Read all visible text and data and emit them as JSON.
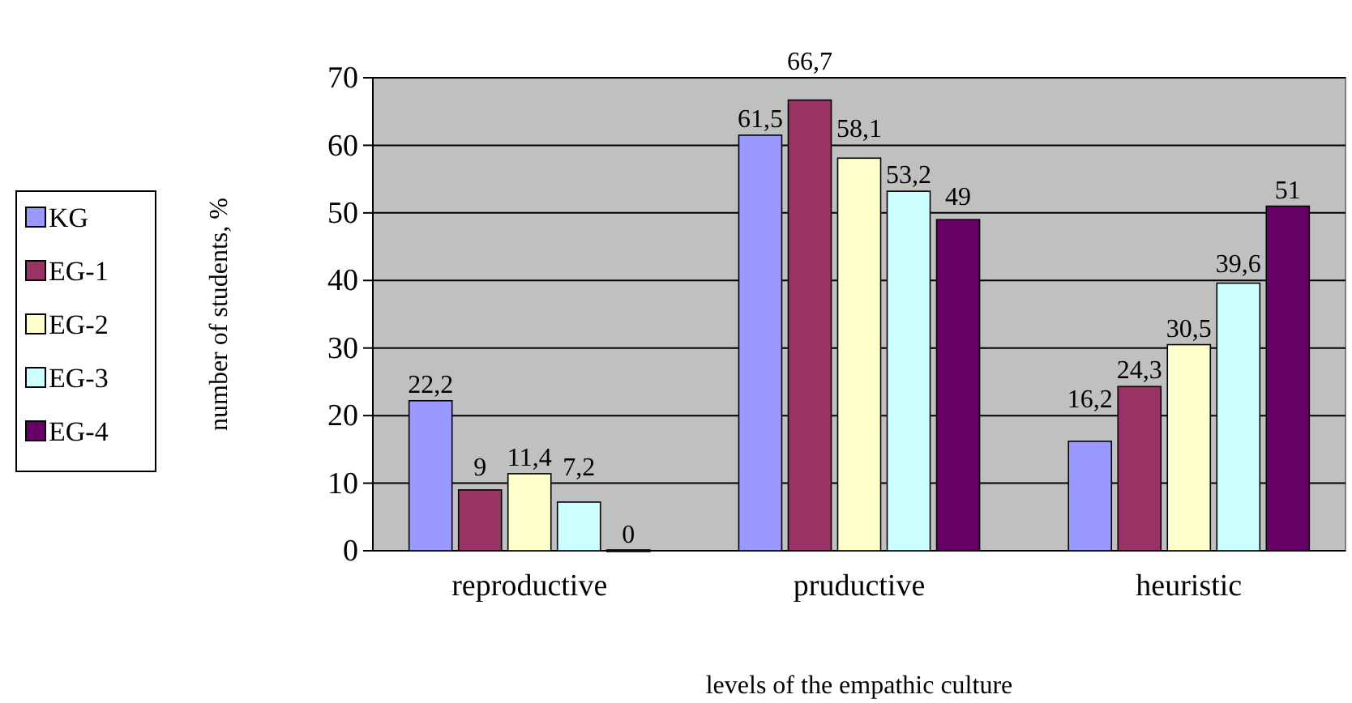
{
  "chart_data": {
    "type": "bar",
    "xlabel": "levels of the empathic culture",
    "ylabel": "number of students, %",
    "categories": [
      "reproductive",
      "pruductive",
      "heuristic"
    ],
    "series": [
      {
        "name": "KG",
        "color": "#9999ff",
        "values": [
          22.2,
          61.5,
          16.2
        ],
        "value_labels": [
          "22,2",
          "61,5",
          "16,2"
        ]
      },
      {
        "name": "EG-1",
        "color": "#993366",
        "values": [
          9,
          66.7,
          24.3
        ],
        "value_labels": [
          "9",
          "66,7",
          "24,3"
        ]
      },
      {
        "name": "EG-2",
        "color": "#ffffcc",
        "values": [
          11.4,
          58.1,
          30.5
        ],
        "value_labels": [
          "11,4",
          "58,1",
          "30,5"
        ]
      },
      {
        "name": "EG-3",
        "color": "#ccffff",
        "values": [
          7.2,
          53.2,
          39.6
        ],
        "value_labels": [
          "7,2",
          "53,2",
          "39,6"
        ]
      },
      {
        "name": "EG-4",
        "color": "#660066",
        "values": [
          0,
          49,
          51
        ],
        "value_labels": [
          "0",
          "49",
          "51"
        ]
      }
    ],
    "ylim": [
      0,
      70
    ],
    "yticks": [
      0,
      10,
      20,
      30,
      40,
      50,
      60,
      70
    ],
    "grid": "y",
    "legend": "left"
  }
}
